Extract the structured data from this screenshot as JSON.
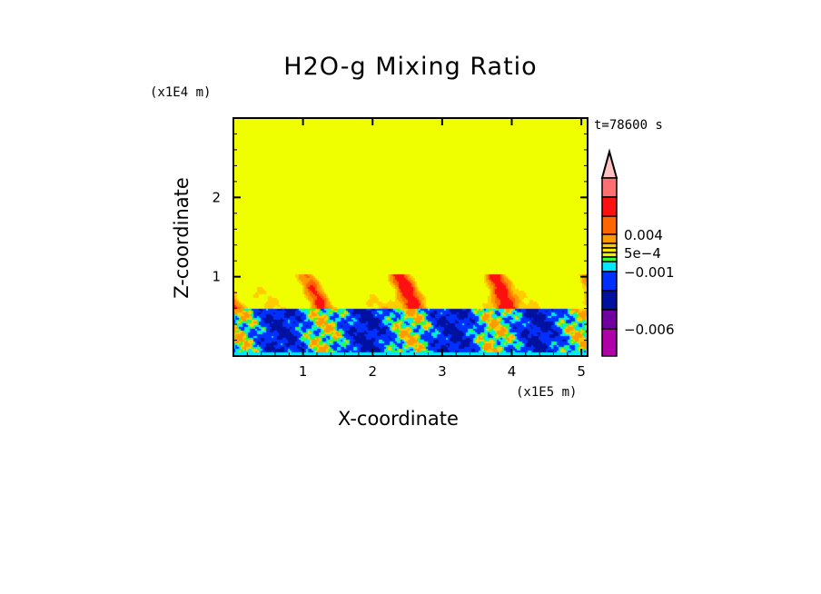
{
  "chart_data": {
    "type": "heatmap",
    "title": "H2O-g Mixing Ratio",
    "xlabel": "X-coordinate",
    "ylabel": "Z-coordinate",
    "x_unit": "(x1E5 m)",
    "y_unit": "(x1E4 m)",
    "annotation": "t=78600 s",
    "xlim": [
      0,
      5.09
    ],
    "ylim": [
      0,
      3.0
    ],
    "xticks": [
      {
        "v": 1,
        "label": "1"
      },
      {
        "v": 2,
        "label": "2"
      },
      {
        "v": 3,
        "label": "3"
      },
      {
        "v": 4,
        "label": "4"
      },
      {
        "v": 5,
        "label": "5"
      }
    ],
    "yticks": [
      {
        "v": 1,
        "label": "1"
      },
      {
        "v": 2,
        "label": "2"
      }
    ],
    "field_description_regions": {
      "upper_layer_top": 3.0,
      "plume_layer_top": 1.05,
      "boundary_layer_top": 0.6
    },
    "colorbar": {
      "extend_top_color": "#ffc0c0",
      "colors": [
        "#ff7070",
        "#ff1010",
        "#ff6600",
        "#ff9900",
        "#ffcc00",
        "#ffe800",
        "#f0f000",
        "#30ff30",
        "#00e8ff",
        "#0030ff",
        "#0010a0",
        "#7000a0",
        "#b000a8",
        "#e800a8"
      ],
      "labels": [
        {
          "after_box": 2,
          "label": "0.004"
        },
        {
          "after_box": 5,
          "label": "5e-4"
        },
        {
          "after_box": 8,
          "label": "-0.001"
        },
        {
          "after_box": 11,
          "label": "-0.006"
        }
      ]
    }
  }
}
